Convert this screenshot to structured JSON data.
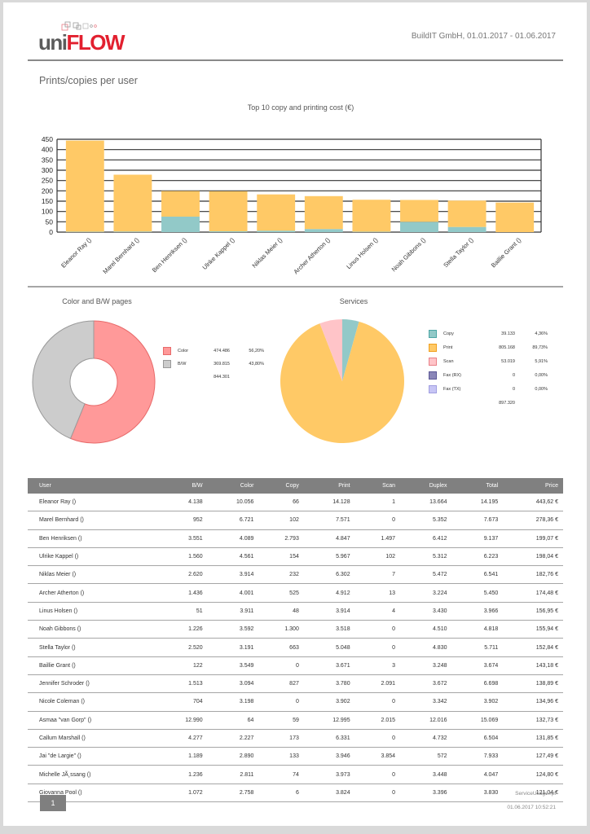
{
  "header": {
    "logo_uni": "uni",
    "logo_flow": "FLOW",
    "company_range": "BuildIT GmbH, 01.01.2017  -  01.06.2017"
  },
  "section_title": "Prints/copies per user",
  "colors": {
    "print": "#ffc966",
    "copy": "#92c9c8",
    "scan": "#ffc4c8",
    "fax_rx": "#8a86b8",
    "fax_tx": "#c7c5f5",
    "color_pages": "#ff9999",
    "bw_pages": "#cccccc",
    "table_header": "#808080",
    "logo_red": "#e2202f"
  },
  "chart_data": [
    {
      "type": "bar",
      "stacked": true,
      "title": "Top 10 copy and printing cost (€)",
      "categories": [
        "Eleanor Ray ()",
        "Marel Bernhard ()",
        "Ben Henriksen ()",
        "Ulrike Kappel ()",
        "Niklas Meier ()",
        "Archer Atherton ()",
        "Linus Holsen ()",
        "Noah Gibbons ()",
        "Stella Taylor ()",
        "Baillie Grant ()"
      ],
      "series": [
        {
          "name": "Copy",
          "color_key": "copy",
          "values": [
            2,
            3,
            75,
            4,
            7,
            15,
            2,
            50,
            25,
            0
          ]
        },
        {
          "name": "Print",
          "color_key": "print",
          "values": [
            441.62,
            275.36,
            124.07,
            194.04,
            175.76,
            159.48,
            154.95,
            105.94,
            127.84,
            143.18
          ]
        }
      ],
      "ylim": [
        0,
        450
      ],
      "yticks": [
        0,
        50,
        100,
        150,
        200,
        250,
        300,
        350,
        400,
        450
      ],
      "grid": true,
      "xlabel": "",
      "ylabel": ""
    },
    {
      "type": "pie",
      "donut": true,
      "title": "Color and B/W pages",
      "slices": [
        {
          "label": "Color",
          "value": 474486,
          "value_text": "474.486",
          "percent_text": "56,20%",
          "color_key": "color_pages"
        },
        {
          "label": "B/W",
          "value": 369815,
          "value_text": "369.815",
          "percent_text": "43,80%",
          "color_key": "bw_pages"
        }
      ],
      "total_text": "844.301",
      "legend": "right"
    },
    {
      "type": "pie",
      "title": "Services",
      "slices": [
        {
          "label": "Copy",
          "value": 39133,
          "value_text": "39.133",
          "percent_text": "4,36%",
          "color_key": "copy"
        },
        {
          "label": "Print",
          "value": 805168,
          "value_text": "805.168",
          "percent_text": "89,73%",
          "color_key": "print"
        },
        {
          "label": "Scan",
          "value": 53019,
          "value_text": "53.019",
          "percent_text": "5,91%",
          "color_key": "scan"
        },
        {
          "label": "Fax (RX)",
          "value": 0,
          "value_text": "0",
          "percent_text": "0,00%",
          "color_key": "fax_rx"
        },
        {
          "label": "Fax (TX)",
          "value": 0,
          "value_text": "0",
          "percent_text": "0,00%",
          "color_key": "fax_tx"
        }
      ],
      "total_text": "897.320",
      "legend": "right"
    }
  ],
  "table": {
    "columns": [
      "User",
      "B/W",
      "Color",
      "Copy",
      "Print",
      "Scan",
      "Duplex",
      "Total",
      "Price"
    ],
    "rows": [
      [
        "Eleanor Ray ()",
        "4.138",
        "10.056",
        "66",
        "14.128",
        "1",
        "13.664",
        "14.195",
        "443,62 €"
      ],
      [
        "Marel Bernhard ()",
        "952",
        "6.721",
        "102",
        "7.571",
        "0",
        "5.352",
        "7.673",
        "278,36 €"
      ],
      [
        "Ben Henriksen ()",
        "3.551",
        "4.089",
        "2.793",
        "4.847",
        "1.497",
        "6.412",
        "9.137",
        "199,07 €"
      ],
      [
        "Ulrike Kappel ()",
        "1.560",
        "4.561",
        "154",
        "5.967",
        "102",
        "5.312",
        "6.223",
        "198,04 €"
      ],
      [
        "Niklas Meier ()",
        "2.620",
        "3.914",
        "232",
        "6.302",
        "7",
        "5.472",
        "6.541",
        "182,76 €"
      ],
      [
        "Archer Atherton ()",
        "1.436",
        "4.001",
        "525",
        "4.912",
        "13",
        "3.224",
        "5.450",
        "174,48 €"
      ],
      [
        "Linus Holsen ()",
        "51",
        "3.911",
        "48",
        "3.914",
        "4",
        "3.430",
        "3.966",
        "156,95 €"
      ],
      [
        "Noah Gibbons ()",
        "1.226",
        "3.592",
        "1.300",
        "3.518",
        "0",
        "4.510",
        "4.818",
        "155,94 €"
      ],
      [
        "Stella Taylor ()",
        "2.520",
        "3.191",
        "663",
        "5.048",
        "0",
        "4.830",
        "5.711",
        "152,84 €"
      ],
      [
        "Baillie Grant ()",
        "122",
        "3.549",
        "0",
        "3.671",
        "3",
        "3.248",
        "3.674",
        "143,18 €"
      ],
      [
        "Jennifer Schroder ()",
        "1.513",
        "3.094",
        "827",
        "3.780",
        "2.091",
        "3.672",
        "6.698",
        "138,89 €"
      ],
      [
        "Nicole Coleman ()",
        "704",
        "3.198",
        "0",
        "3.902",
        "0",
        "3.342",
        "3.902",
        "134,96 €"
      ],
      [
        "Asmaa \"van Gorp\" ()",
        "12.990",
        "64",
        "59",
        "12.995",
        "2.015",
        "12.016",
        "15.069",
        "132,73 €"
      ],
      [
        "Callum Marshall ()",
        "4.277",
        "2.227",
        "173",
        "6.331",
        "0",
        "4.732",
        "6.504",
        "131,85 €"
      ],
      [
        "Jai \"de Largie\" ()",
        "1.189",
        "2.890",
        "133",
        "3.946",
        "3.854",
        "572",
        "7.933",
        "127,49 €"
      ],
      [
        "Michelle JÃ¸ssang ()",
        "1.236",
        "2.811",
        "74",
        "3.973",
        "0",
        "3.448",
        "4.047",
        "124,80 €"
      ],
      [
        "Giovanna Pool ()",
        "1.072",
        "2.758",
        "6",
        "3.824",
        "0",
        "3.396",
        "3.830",
        "121,04 €"
      ]
    ]
  },
  "footer": {
    "page_number": "1",
    "report_file": "ServiceUsage.rpt",
    "generated": "01.06.2017  10:52:21"
  }
}
